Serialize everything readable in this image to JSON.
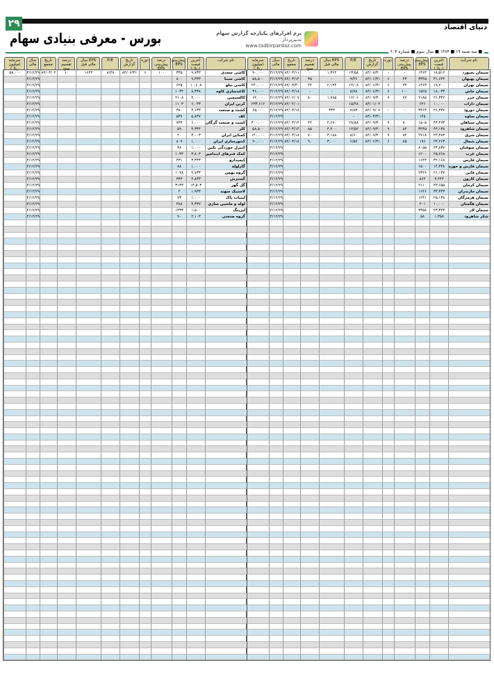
{
  "page_number": "۲۹",
  "paper_name": "دنیای اقتصاد",
  "title": "بورس - معرفی بنیادی سهام",
  "ad": {
    "line1": "نرم افزارهای یکپارچه گزارش سهام",
    "line2": "www.tadbirpardaz.com",
    "line3": "تدبیرپرداز"
  },
  "dateline": "■ سه شنبه ۱۹ ■ ۱۳۸۴ ■ سال سوم ■ شماره ۶۰۴",
  "columns": [
    "نام شرکت",
    "آخرین قیمت (ریال)",
    "پیش‌بینی EPS",
    "درصد پیش‌بینی EPS",
    "دوره",
    "تاریخ گزارش",
    "P/E",
    "EPS سال مالی قبل",
    "درصد تقسیم سود",
    "تاریخ مجمع",
    "سال مالی",
    "سرمایه (میلیون ریال)"
  ],
  "right_rows": [
    [
      "سیمان بجنورد",
      "۱۸,۵۱۲",
      "۱۳۶۴",
      "-",
      "-",
      "۸۴/۰۸/۳۰",
      "۱۳/۵۸",
      "۱,۳۶۴",
      "-",
      "۸۴/۰۳/۱۱",
      "۸۴/۱۲/۲۹",
      "۹۰,۰۰۰"
    ],
    [
      "سیمان بهبهان",
      "۳۱,۶۴۴",
      "۳۳۴۵",
      "۴۳",
      "۶",
      "۸۴/۰۶/۳۱",
      "۹/۴۶",
      "-",
      "۳۵",
      "۸۴/۰۳/۱۴",
      "۸۴/۱۲/۲۹",
      "۵۸,۵۰۰"
    ],
    [
      "سیمان تهران",
      "۱۹,۲۰۰",
      "۱۳۶۳",
      "۳۴",
      "۶",
      "۸۴/۰۶/۳۱",
      "۱۴/۰۸",
      "۲,۱۳۴",
      "۴۴",
      "۸۴/۰۳/۳۰",
      "۸۴/۱۲/۲۹",
      "۲۴۰,۰۰۰"
    ],
    [
      "سیمان خاش",
      "۱۸,۰۳۳",
      "۱۵۲۵",
      "۱۰۰",
      "۶",
      "۸۴/۰۶/۳۱",
      "۸/۷۸",
      "-",
      "-",
      "۸۴/۰۳/۱۸",
      "۸۴/۱۲/۲۹",
      "۳۶,۰۰۰"
    ],
    [
      "سیمان خزر",
      "۲۶,۳۴۲",
      "۲۱۸۵",
      "۷۷",
      "۹",
      "۸۴/۰۹/۳۰",
      "۱۲/۰۶",
      "۱,۷۸۵",
      "۸۰",
      "۸۴/۰۲/۰۷",
      "۸۴/۱۲/۲۹",
      "۶۲,۰۰۰"
    ],
    [
      "سیمان داراب",
      "۱۰,۰۰۰",
      "۶۴۶",
      "",
      "",
      "۸۴/۰۱/۰۲",
      "۱۵/۴۸",
      "",
      "",
      "۸۴/۰۴/۰۱",
      "۸۴/۱۲/۲۹",
      "۲۳۳,۶۱۲"
    ],
    [
      "سیمان دورود",
      "۲۶,۳۴۷",
      "۳۳۶۳",
      "-",
      "-",
      "۸۴/۰۹/۰۷",
      "۷/۸۳",
      "۳۳۳",
      "",
      "۸۴/۰۳/۱۸",
      "۸۴/۱۲/۲۹",
      "۶۵,۰۰۰"
    ],
    [
      "سیمان ساوه",
      "",
      "۱۴۵",
      "",
      "",
      "۸۴/۰۳/۳۱",
      "-",
      "",
      "",
      "",
      "۸۴/۱۲/۲۹",
      ""
    ],
    [
      "سیمان سپاهان",
      "۴۳,۴۷۳",
      "۱۵۰۵",
      "۸۰",
      "۹",
      "۸۴/۰۹/۳۰",
      "۲۸/۸۸",
      "۲,۶۷۰",
      "۴۴",
      "۸۴/۰۳/۱۴",
      "۸۴/۱۲/۲۹",
      "۴۰۰,۰۰۰"
    ],
    [
      "سیمان شاهرود",
      "۴۳,۱۳۸",
      "۳۴۴۵",
      "۸۴",
      "۹",
      "۸۴/۰۹/۳۰",
      "۱۲/۵۲",
      "۴,۲۰۰",
      "۸۵",
      "۸۴/۰۳/۱۴",
      "۸۴/۱۲/۲۹",
      "۵۸,۵۰۰"
    ],
    [
      "سیمان شرق",
      "۲۳,۳۸۳",
      "۲۷۱۸",
      "۸۴",
      "۹",
      "۸۴/۰۹/۳۰",
      "۸/۶۰",
      "۳,۱۸۸",
      "۷۰",
      "۸۴/۰۳/۱۸",
      "۸۴/۱۲/۲۹",
      "۱۴۰,۰۰۰"
    ],
    [
      "سیمان شمال",
      "۲۳,۲۶۳",
      "۱۹۶",
      "۸۵",
      "۶",
      "۸۴/۰۶/۳۱",
      "۶/۵۷",
      "۳,۰۰۰",
      "۹۰",
      "۸۴/۰۳/۱۸",
      "۸۴/۱۲/۲۹",
      "۹۰,۰۰۰"
    ],
    [
      "سیمان صوفیان",
      "۴۳,۸۳۷",
      "۸۰۵۵",
      "",
      "",
      "",
      "",
      "",
      "",
      "",
      "۸۴/۱۲/۲۹",
      ""
    ],
    [
      "سیمان غرب",
      "۲۵,۷۶۸",
      "۱۲۰۰",
      "",
      "",
      "",
      "",
      "",
      "",
      "",
      "۸۴/۱۲/۲۹",
      ""
    ],
    [
      "سیمان فارس",
      "۳۲,۱۶۸",
      "۱۶۴۴",
      "",
      "",
      "",
      "",
      "",
      "",
      "",
      "۸۴/۱۲/۲۹",
      ""
    ],
    [
      "سیمان فارس و خوزستان",
      "۱۴,۳۴۸",
      "۱۵۰۰",
      "",
      "",
      "",
      "",
      "",
      "",
      "",
      "۸۴/۱۲/۲۹",
      ""
    ],
    [
      "سیمان قاین",
      "۲۶,۱۳۷",
      "۲۳۲۶",
      "",
      "",
      "",
      "",
      "",
      "",
      "",
      "۸۴/۱۲/۲۹",
      ""
    ],
    [
      "سیمان کارون",
      "۳,۴۴۴",
      "۸۶۴",
      "",
      "",
      "",
      "",
      "",
      "",
      "",
      "۸۴/۱۲/۲۹",
      ""
    ],
    [
      "سیمان کرمان",
      "۲۳,۶۵۵",
      "۲۱۱۰",
      "",
      "",
      "",
      "",
      "",
      "",
      "",
      "۸۴/۱۲/۲۹",
      ""
    ],
    [
      "سیمان مازندران",
      "۳۳,۳۴۳",
      "۱۶۴۶",
      "",
      "",
      "",
      "",
      "",
      "",
      "",
      "۸۴/۱۲/۲۹",
      ""
    ],
    [
      "سیمان هرمزگان",
      "۲۵,۱۳۸",
      "۱۲۴۱",
      "",
      "",
      "",
      "",
      "",
      "",
      "",
      "۸۴/۱۲/۲۹",
      ""
    ],
    [
      "سیمان هگمتان",
      "۱۰,۰۰۰",
      "۲۰۱",
      "",
      "",
      "",
      "",
      "",
      "",
      "",
      "۸۴/۱۲/۲۹",
      ""
    ],
    [
      "سیمان لار",
      "۲۳,۳۲۳",
      "۳۳۵۸",
      "",
      "",
      "",
      "",
      "",
      "",
      "",
      "۸۴/۱۲/۲۹",
      ""
    ],
    [
      "شکر شاهرود",
      "۱,۳۵۸",
      "۵۸",
      "",
      "",
      "",
      "",
      "",
      "",
      "",
      "۸۴/۱۲/۲۹",
      ""
    ]
  ],
  "left_rows": [
    [
      "کاشی سعدی",
      "۹,۷۳۳",
      "۳۳۵",
      "۱۰۰",
      "۶",
      "۸۴/۰۶/۳۱",
      "۸/۲۷",
      "۱۶۴۴",
      "۱۰",
      "۸۴/۰۳/۰۲",
      "۸۴/۱۲/۲۹",
      "۵۸,۰۰۰"
    ],
    [
      "کاشی سینا",
      "۹,۳۳۳",
      "۸۰۰",
      "",
      "",
      "",
      "",
      "",
      "",
      "",
      "۸۴/۱۲/۲۹",
      ""
    ],
    [
      "کاشی نیلو",
      "۱۰,۶۰۸",
      "۶۲۵",
      "",
      "",
      "",
      "",
      "",
      "",
      "",
      "۸۴/۱۲/۲۹",
      ""
    ],
    [
      "کاغذسازی کاوه",
      "۸,۳۳۸",
      "۱۰۳۴",
      "",
      "",
      "",
      "",
      "",
      "",
      "",
      "۸۴/۱۲/۲۹",
      ""
    ],
    [
      "کالسیمین",
      "۴,۰۰۰",
      "۲۱۰۸",
      "",
      "",
      "",
      "",
      "",
      "",
      "",
      "۸۴/۱۲/۲۹",
      ""
    ],
    [
      "کربن ایران",
      "۶,۰۳۳",
      "۱۱۰۳",
      "",
      "",
      "",
      "",
      "",
      "",
      "",
      "۸۴/۱۲/۲۹",
      ""
    ],
    [
      "کشت و صنعت",
      "۳,۱۳۳",
      "۳۸۰",
      "",
      "",
      "",
      "",
      "",
      "",
      "",
      "۸۴/۱۲/۲۹",
      ""
    ],
    [
      "کف",
      "۵,۸۳۷",
      "۵۳۷",
      "",
      "",
      "",
      "",
      "",
      "",
      "",
      "۸۴/۱۲/۲۹",
      ""
    ],
    [
      "کشت و صنعت گرگان",
      "۶,۰۰۰",
      "۷۳۴",
      "",
      "",
      "",
      "",
      "",
      "",
      "",
      "۸۴/۱۲/۲۹",
      ""
    ],
    [
      "کلر",
      "۴,۳۳۴",
      "۵۹",
      "",
      "",
      "",
      "",
      "",
      "",
      "",
      "۸۴/۱۲/۲۹",
      ""
    ],
    [
      "کمباین ایران",
      "۳,۰۰۳",
      "۴۰",
      "",
      "",
      "",
      "",
      "",
      "",
      "",
      "۸۴/۱۲/۲۹",
      ""
    ],
    [
      "کنتورسازی ایران",
      "۱,۰۰۰",
      "۸۰۹",
      "",
      "",
      "",
      "",
      "",
      "",
      "",
      "۸۴/۱۲/۲۹",
      ""
    ],
    [
      "کنترل خوردگی تکین",
      "۱,۰۰۰",
      "۳۸",
      "",
      "",
      "",
      "",
      "",
      "",
      "",
      "۸۴/۱۲/۲۹",
      ""
    ],
    [
      "کمک فنرهای ایندامین",
      "۳,۸۰۳",
      "۱۰۳۴",
      "",
      "",
      "",
      "",
      "",
      "",
      "",
      "۸۴/۱۲/۲۹",
      ""
    ],
    [
      "کیمیدارو",
      "۳,۳۳۳",
      "۴۳۱",
      "",
      "",
      "",
      "",
      "",
      "",
      "",
      "۸۴/۱۲/۲۹",
      ""
    ],
    [
      "گازلوله",
      "۱,۰۰۰",
      "۸۸",
      "",
      "",
      "",
      "",
      "",
      "",
      "",
      "۸۴/۱۲/۲۹",
      ""
    ],
    [
      "گروه بهمن",
      "۲,۷۳۳",
      "۱۰۷۸",
      "",
      "",
      "",
      "",
      "",
      "",
      "",
      "۸۴/۱۲/۲۹",
      ""
    ],
    [
      "گسترش",
      "۲,۸۳۳",
      "۳۳۳",
      "",
      "",
      "",
      "",
      "",
      "",
      "",
      "۸۴/۱۲/۲۹",
      ""
    ],
    [
      "گل گهر",
      "۱۴,۵۰۳",
      "۳۱۳۳",
      "",
      "",
      "",
      "",
      "",
      "",
      "",
      "۸۴/۱۲/۲۹",
      ""
    ],
    [
      "لاستیک سهند",
      "۱,۹۳۳",
      "۲",
      "",
      "",
      "",
      "",
      "",
      "",
      "",
      "۸۴/۱۲/۲۹",
      ""
    ],
    [
      "لبنیات پاک",
      "۱,۰۰۰",
      "۷۳",
      "",
      "",
      "",
      "",
      "",
      "",
      "",
      "۸۴/۱۲/۲۹",
      ""
    ],
    [
      "لوله و ماشین سازی",
      "۴,۳۳۷",
      "۴۸۸",
      "",
      "",
      "",
      "",
      "",
      "",
      "",
      "۸۴/۱۲/۲۹",
      ""
    ],
    [
      "لیزینگ",
      "۱,۵۰۰",
      "۱۳۳۳",
      "",
      "",
      "",
      "",
      "",
      "",
      "",
      "۸۴/۱۲/۲۹",
      ""
    ],
    [
      "گروه صنعتی",
      "۲,۱۰۳",
      "۹۰",
      "",
      "",
      "",
      "",
      "",
      "",
      "",
      "۸۴/۱۲/۲۹",
      ""
    ]
  ]
}
